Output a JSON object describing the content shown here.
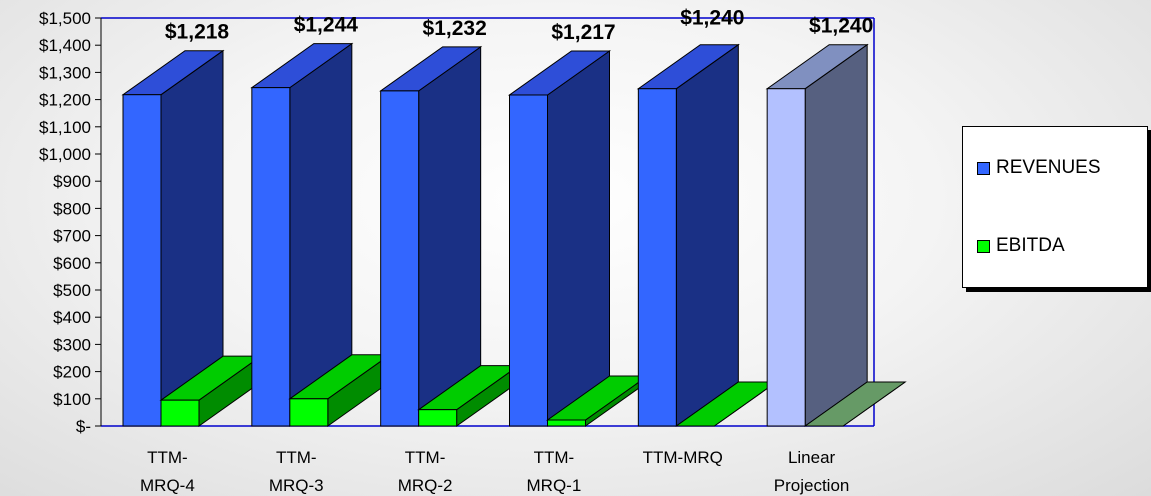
{
  "chart_data": {
    "type": "bar",
    "categories": [
      [
        "TTM-",
        "MRQ-4"
      ],
      [
        "TTM-",
        "MRQ-3"
      ],
      [
        "TTM-",
        "MRQ-2"
      ],
      [
        "TTM-",
        "MRQ-1"
      ],
      [
        "TTM-MRQ"
      ],
      [
        "Linear",
        "Projection"
      ]
    ],
    "series": [
      {
        "name": "REVENUES",
        "values": [
          1218,
          1244,
          1232,
          1217,
          1240,
          1240
        ],
        "data_labels": [
          "$1,218",
          "$1,244",
          "$1,232",
          "$1,217",
          "$1,240",
          "$1,240"
        ],
        "color": "#3366ff",
        "projection_color": "#b3c1ff"
      },
      {
        "name": "EBITDA",
        "values": [
          95,
          100,
          60,
          22,
          0,
          0
        ],
        "color": "#00ff00",
        "projection_color": "#7fc07f"
      }
    ],
    "y_ticks": [
      "$-",
      "$100",
      "$200",
      "$300",
      "$400",
      "$500",
      "$600",
      "$700",
      "$800",
      "$900",
      "$1,000",
      "$1,100",
      "$1,200",
      "$1,300",
      "$1,400",
      "$1,500"
    ],
    "ylim": [
      0,
      1500
    ],
    "legend_position": "right",
    "grid": false
  }
}
